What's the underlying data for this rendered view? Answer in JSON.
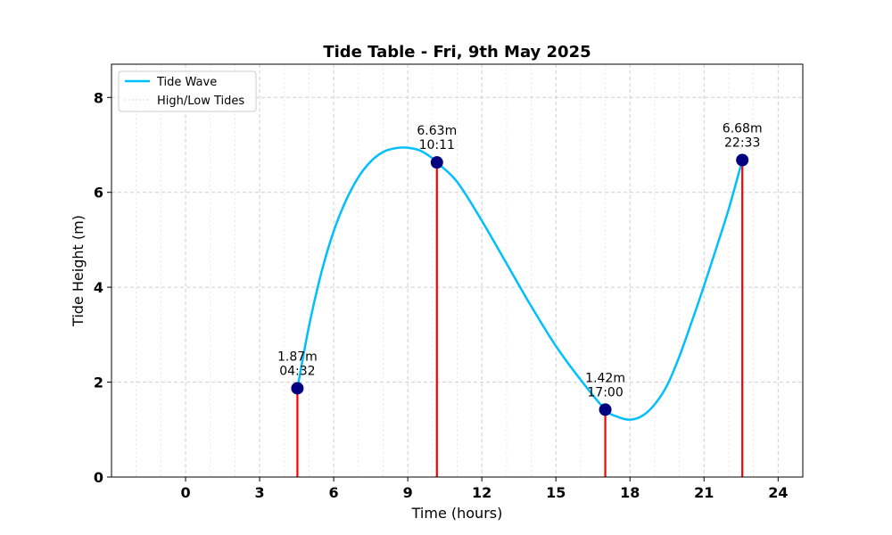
{
  "chart_data": {
    "type": "line",
    "title": "Tide Table - Fri, 9th May 2025",
    "xlabel": "Time (hours)",
    "ylabel": "Tide Height (m)",
    "xlim": [
      -3,
      25
    ],
    "ylim": [
      0,
      8.7
    ],
    "xticks": [
      0,
      3,
      6,
      9,
      12,
      15,
      18,
      21,
      24
    ],
    "xtick_labels": [
      "0",
      "3",
      "6",
      "9",
      "12",
      "15",
      "18",
      "21",
      "24"
    ],
    "yticks": [
      0,
      2,
      4,
      6,
      8
    ],
    "ytick_labels": [
      "0",
      "2",
      "4",
      "6",
      "8"
    ],
    "grid": true,
    "legend_position": "top-left",
    "series": [
      {
        "name": "Tide Wave",
        "color": "#00BFFF",
        "x": [
          4.53,
          5,
          5.5,
          6,
          6.5,
          7,
          7.5,
          8,
          8.5,
          9,
          9.5,
          10,
          10.18,
          11,
          12,
          13,
          14,
          15,
          16,
          17,
          17.5,
          18,
          18.5,
          19,
          19.5,
          20,
          20.5,
          21,
          21.5,
          22,
          22.55
        ],
        "y": [
          1.87,
          3.18,
          4.31,
          5.18,
          5.83,
          6.32,
          6.65,
          6.85,
          6.93,
          6.94,
          6.88,
          6.72,
          6.63,
          6.22,
          5.4,
          4.5,
          3.6,
          2.76,
          2.05,
          1.42,
          1.27,
          1.21,
          1.29,
          1.53,
          1.93,
          2.54,
          3.27,
          4.03,
          4.83,
          5.65,
          6.68
        ]
      },
      {
        "name": "High/Low Tides",
        "color": "#FF0000"
      }
    ],
    "tides": [
      {
        "x": 4.53,
        "y": 1.87,
        "height_label": "1.87m",
        "time_label": "04:32"
      },
      {
        "x": 10.18,
        "y": 6.63,
        "height_label": "6.63m",
        "time_label": "10:11"
      },
      {
        "x": 17.0,
        "y": 1.42,
        "height_label": "1.42m",
        "time_label": "17:00"
      },
      {
        "x": 22.55,
        "y": 6.68,
        "height_label": "6.68m",
        "time_label": "22:33"
      }
    ],
    "marker_color": "#000080"
  }
}
